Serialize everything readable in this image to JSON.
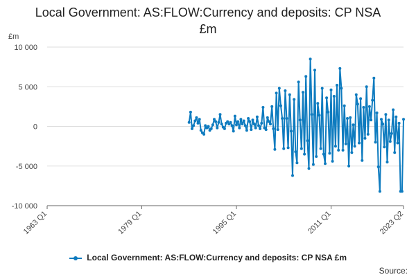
{
  "title": "Local Government: AS:FLOW:Currency and deposits: CP NSA £m",
  "unit_label": "£m",
  "source_label": "Source:",
  "colors": {
    "series": "#0e7bbf",
    "grid": "#dddddd",
    "axis": "#666666",
    "text": "#222222"
  },
  "chart_data": {
    "type": "line",
    "title": "Local Government: AS:FLOW:Currency and deposits: CP NSA £m",
    "xlabel": "",
    "ylabel": "£m",
    "xlim": [
      "1963 Q1",
      "2023 Q2"
    ],
    "ylim": [
      -10000,
      10000
    ],
    "x_ticks": [
      "1963 Q1",
      "1979 Q1",
      "1995 Q1",
      "2011 Q1",
      "2023 Q2"
    ],
    "y_ticks": [
      10000,
      5000,
      0,
      -5000,
      -10000
    ],
    "y_tick_labels": [
      "10 000",
      "5 000",
      "0",
      "-5 000",
      "-10 000"
    ],
    "grid": true,
    "legend_position": "bottom",
    "series": [
      {
        "name": "Local Government: AS:FLOW:Currency and deposits: CP NSA £m",
        "color": "#0e7bbf",
        "x": [
          "1987 Q1",
          "1987 Q2",
          "1987 Q3",
          "1987 Q4",
          "1988 Q1",
          "1988 Q2",
          "1988 Q3",
          "1988 Q4",
          "1989 Q1",
          "1989 Q2",
          "1989 Q3",
          "1989 Q4",
          "1990 Q1",
          "1990 Q2",
          "1990 Q3",
          "1990 Q4",
          "1991 Q1",
          "1991 Q2",
          "1991 Q3",
          "1991 Q4",
          "1992 Q1",
          "1992 Q2",
          "1992 Q3",
          "1992 Q4",
          "1993 Q1",
          "1993 Q2",
          "1993 Q3",
          "1993 Q4",
          "1994 Q1",
          "1994 Q2",
          "1994 Q3",
          "1994 Q4",
          "1995 Q1",
          "1995 Q2",
          "1995 Q3",
          "1995 Q4",
          "1996 Q1",
          "1996 Q2",
          "1996 Q3",
          "1996 Q4",
          "1997 Q1",
          "1997 Q2",
          "1997 Q3",
          "1997 Q4",
          "1998 Q1",
          "1998 Q2",
          "1998 Q3",
          "1998 Q4",
          "1999 Q1",
          "1999 Q2",
          "1999 Q3",
          "1999 Q4",
          "2000 Q1",
          "2000 Q2",
          "2000 Q3",
          "2000 Q4",
          "2001 Q1",
          "2001 Q2",
          "2001 Q3",
          "2001 Q4",
          "2002 Q1",
          "2002 Q2",
          "2002 Q3",
          "2002 Q4",
          "2003 Q1",
          "2003 Q2",
          "2003 Q3",
          "2003 Q4",
          "2004 Q1",
          "2004 Q2",
          "2004 Q3",
          "2004 Q4",
          "2005 Q1",
          "2005 Q2",
          "2005 Q3",
          "2005 Q4",
          "2006 Q1",
          "2006 Q2",
          "2006 Q3",
          "2006 Q4",
          "2007 Q1",
          "2007 Q2",
          "2007 Q3",
          "2007 Q4",
          "2008 Q1",
          "2008 Q2",
          "2008 Q3",
          "2008 Q4",
          "2009 Q1",
          "2009 Q2",
          "2009 Q3",
          "2009 Q4",
          "2010 Q1",
          "2010 Q2",
          "2010 Q3",
          "2010 Q4",
          "2011 Q1",
          "2011 Q2",
          "2011 Q3",
          "2011 Q4",
          "2012 Q1",
          "2012 Q2",
          "2012 Q3",
          "2012 Q4",
          "2013 Q1",
          "2013 Q2",
          "2013 Q3",
          "2013 Q4",
          "2014 Q1",
          "2014 Q2",
          "2014 Q3",
          "2014 Q4",
          "2015 Q1",
          "2015 Q2",
          "2015 Q3",
          "2015 Q4",
          "2016 Q1",
          "2016 Q2",
          "2016 Q3",
          "2016 Q4",
          "2017 Q1",
          "2017 Q2",
          "2017 Q3",
          "2017 Q4",
          "2018 Q1",
          "2018 Q2",
          "2018 Q3",
          "2018 Q4",
          "2019 Q1",
          "2019 Q2",
          "2019 Q3",
          "2019 Q4",
          "2020 Q1",
          "2020 Q2",
          "2020 Q3",
          "2020 Q4",
          "2021 Q1",
          "2021 Q2",
          "2021 Q3",
          "2021 Q4",
          "2022 Q1",
          "2022 Q2",
          "2022 Q3",
          "2022 Q4",
          "2023 Q1",
          "2023 Q2"
        ],
        "y": [
          500,
          1800,
          -300,
          100,
          700,
          1100,
          400,
          900,
          -500,
          -800,
          -1000,
          100,
          -200,
          0,
          -500,
          -300,
          200,
          900,
          600,
          -200,
          500,
          1500,
          300,
          -100,
          -300,
          400,
          600,
          300,
          500,
          100,
          -600,
          1300,
          200,
          600,
          -200,
          900,
          300,
          700,
          100,
          -500,
          1000,
          600,
          -400,
          800,
          300,
          -200,
          1200,
          100,
          -300,
          400,
          2400,
          -200,
          -400,
          1100,
          600,
          300,
          2500,
          -300,
          -2900,
          4200,
          -400,
          4800,
          2600,
          1000,
          -2800,
          4500,
          1000,
          -2700,
          4000,
          -600,
          -6200,
          3400,
          -3200,
          -4600,
          5600,
          800,
          -2800,
          4300,
          -3500,
          6300,
          -1800,
          -5300,
          8500,
          1500,
          -4800,
          7100,
          -3800,
          2900,
          1400,
          -2800,
          4800,
          -3500,
          -4700,
          3600,
          1800,
          -3400,
          4600,
          -4400,
          3800,
          -2500,
          5200,
          -3000,
          7300,
          4800,
          -3000,
          2600,
          -2200,
          1000,
          -5000,
          1100,
          -3300,
          200,
          -2500,
          4000,
          2800,
          -2100,
          3500,
          -4300,
          2400,
          -1500,
          5000,
          -1000,
          2500,
          800,
          3300,
          6100,
          -2000,
          1700,
          -5100,
          -8200,
          900,
          300,
          -2600,
          1500,
          -4500,
          800,
          -1900,
          -900,
          2100,
          -3300,
          1200,
          -2100,
          400,
          -8200,
          -8200,
          900
        ]
      }
    ]
  }
}
